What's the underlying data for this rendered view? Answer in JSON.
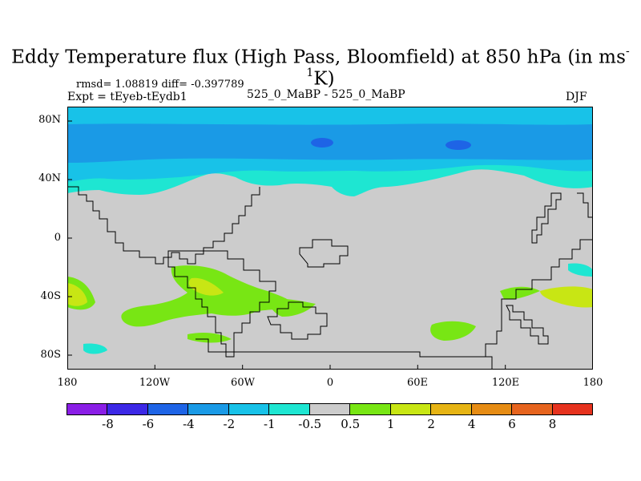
{
  "title": {
    "text": "Eddy Temperature flux (High Pass, Bloomfield) at 850 hPa (in ms",
    "sup": "-1",
    "suffix": "K)"
  },
  "stats": "rmsd= 1.08819 diff= -0.397789",
  "expt": "Expt = tEyeb-tEydb1",
  "center_label": "525_0_MaBP - 525_0_MaBP",
  "season": "DJF",
  "chart_data": {
    "type": "heatmap",
    "title": "Eddy Temperature flux (High Pass, Bloomfield) at 850 hPa (in ms-1K)",
    "x_ticks": [
      "180",
      "120W",
      "60W",
      "0",
      "60E",
      "120E",
      "180"
    ],
    "y_ticks": [
      "80N",
      "40N",
      "0",
      "40S",
      "80S"
    ],
    "xlim": [
      -180,
      180
    ],
    "ylim": [
      -90,
      90
    ],
    "colorbar": {
      "labels": [
        "-8",
        "-6",
        "-4",
        "-2",
        "-1",
        "-0.5",
        "0.5",
        "1",
        "2",
        "4",
        "6",
        "8"
      ],
      "colors": [
        "#8a1ee6",
        "#3c28e6",
        "#1e64e6",
        "#1a9ae6",
        "#18c2e8",
        "#1ee6d2",
        "#cccccc",
        "#78e614",
        "#c8e614",
        "#e6b414",
        "#e68c14",
        "#e6641e",
        "#e6321e"
      ]
    },
    "background": "#cccccc"
  }
}
